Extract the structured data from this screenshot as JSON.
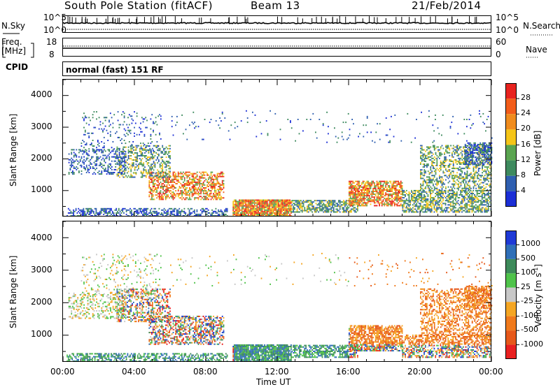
{
  "header": {
    "station": "South Pole Station (fitACF)",
    "beam": "Beam 13",
    "date": "21/Feb/2014"
  },
  "status_panel": {
    "nsky_label": "N.Sky",
    "nsky_ticks": [
      "10^5",
      "10^0"
    ],
    "nsearch_label": "N.Search",
    "nsearch_ticks": [
      "10^5",
      "10^0"
    ],
    "freq_label_line1": "Freq.",
    "freq_label_line2": "[MHz]",
    "freq_ticks": [
      "18",
      "8"
    ],
    "nave_label": "Nave",
    "nave_ticks": [
      "60",
      "0"
    ],
    "cpid_label": "CPID",
    "cpid_value": "normal (fast) 151 RF"
  },
  "chart_data": [
    {
      "type": "heatmap",
      "name": "power",
      "ylabel": "Slant Range [km]",
      "ylim": [
        180,
        4500
      ],
      "yticks": [
        1000,
        2000,
        3000,
        4000
      ],
      "xlabel": "Time UT",
      "xticks": [
        "00:00",
        "04:00",
        "08:00",
        "12:00",
        "16:00",
        "20:00",
        "00:00"
      ],
      "colorbar": {
        "title": "Power [dB]",
        "ticks": [
          "28",
          "24",
          "20",
          "16",
          "12",
          "8",
          "4"
        ],
        "colors": [
          "#e8231f",
          "#f25c1a",
          "#f08c1e",
          "#f5c518",
          "#5aa450",
          "#3e8a5e",
          "#2f5fb0",
          "#1c2fd6"
        ]
      }
    },
    {
      "type": "heatmap",
      "name": "velocity",
      "ylabel": "Slant Range [km]",
      "ylim": [
        180,
        4500
      ],
      "yticks": [
        1000,
        2000,
        3000,
        4000
      ],
      "xlabel": "Time UT",
      "xticks": [
        "00:00",
        "04:00",
        "08:00",
        "12:00",
        "16:00",
        "20:00",
        "00:00"
      ],
      "colorbar": {
        "title": "Velocity [m s",
        "title_sup": "-1",
        "title_end": "]",
        "ticks": [
          "1000",
          "500",
          "100",
          "25",
          "-25",
          "-100",
          "-500",
          "-1000"
        ],
        "colors": [
          "#1f3ad6",
          "#2f6fb8",
          "#3d8a5a",
          "#4fc34a",
          "#c8c8c8",
          "#f5a623",
          "#f07a1c",
          "#e6581a",
          "#e82020"
        ]
      }
    }
  ]
}
